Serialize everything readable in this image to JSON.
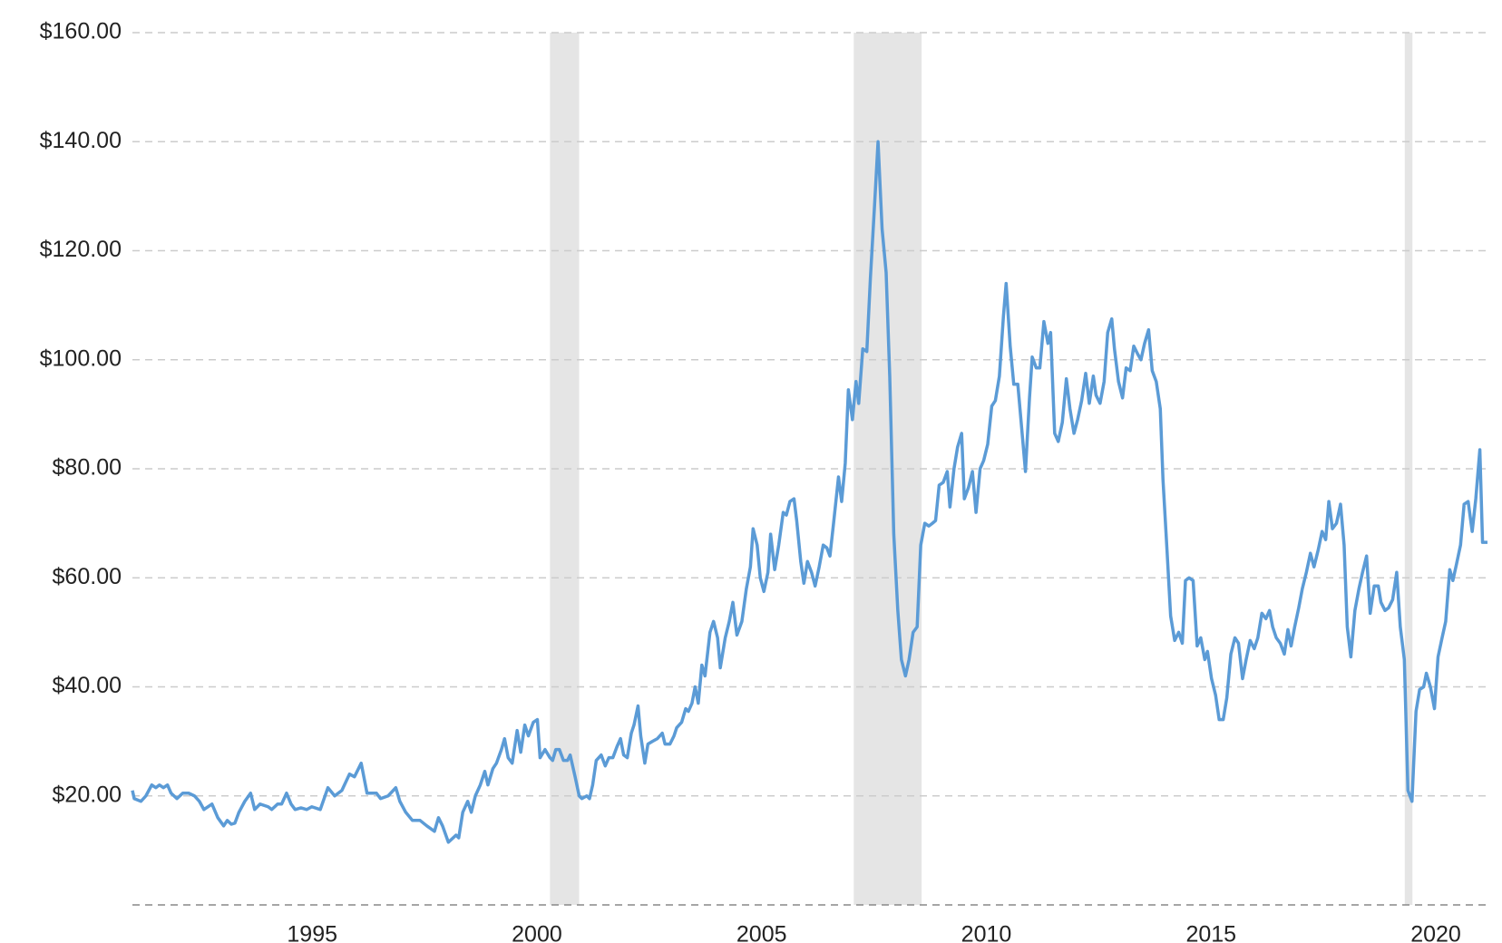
{
  "chart_data": {
    "type": "line",
    "x": [
      1991.0,
      1991.04,
      1991.19,
      1991.3,
      1991.43,
      1991.52,
      1991.6,
      1991.69,
      1991.78,
      1991.86,
      1991.99,
      1992.12,
      1992.25,
      1992.38,
      1992.49,
      1992.59,
      1992.77,
      1992.9,
      1993.03,
      1993.11,
      1993.2,
      1993.28,
      1993.37,
      1993.5,
      1993.63,
      1993.72,
      1993.84,
      1994.02,
      1994.1,
      1994.23,
      1994.32,
      1994.43,
      1994.53,
      1994.62,
      1994.75,
      1994.88,
      1994.99,
      1995.18,
      1995.35,
      1995.5,
      1995.66,
      1995.83,
      1995.94,
      1996.09,
      1996.22,
      1996.43,
      1996.52,
      1996.69,
      1996.86,
      1996.95,
      1997.08,
      1997.23,
      1997.4,
      1997.55,
      1997.72,
      1997.81,
      1997.9,
      1998.03,
      1998.2,
      1998.26,
      1998.35,
      1998.46,
      1998.54,
      1998.63,
      1998.74,
      1998.84,
      1998.91,
      1999.02,
      1999.1,
      1999.21,
      1999.28,
      1999.36,
      1999.45,
      1999.56,
      1999.64,
      1999.73,
      1999.81,
      1999.92,
      2000.01,
      2000.07,
      2000.18,
      2000.29,
      2000.35,
      2000.42,
      2000.5,
      2000.59,
      2000.68,
      2000.74,
      2000.85,
      2000.94,
      2001.0,
      2001.11,
      2001.17,
      2001.24,
      2001.32,
      2001.43,
      2001.52,
      2001.6,
      2001.69,
      2001.78,
      2001.86,
      2001.93,
      2002.01,
      2002.1,
      2002.16,
      2002.25,
      2002.31,
      2002.4,
      2002.47,
      2002.57,
      2002.68,
      2002.79,
      2002.85,
      2002.96,
      2003.05,
      2003.11,
      2003.22,
      2003.31,
      2003.37,
      2003.45,
      2003.52,
      2003.59,
      2003.67,
      2003.74,
      2003.85,
      2003.93,
      2004.02,
      2004.08,
      2004.19,
      2004.28,
      2004.36,
      2004.45,
      2004.56,
      2004.66,
      2004.75,
      2004.81,
      2004.9,
      2004.97,
      2005.05,
      2005.14,
      2005.2,
      2005.29,
      2005.38,
      2005.48,
      2005.55,
      2005.63,
      2005.72,
      2005.78,
      2005.87,
      2005.94,
      2006.02,
      2006.11,
      2006.19,
      2006.28,
      2006.37,
      2006.45,
      2006.52,
      2006.6,
      2006.71,
      2006.78,
      2006.86,
      2006.93,
      2007.02,
      2007.1,
      2007.16,
      2007.25,
      2007.34,
      2007.42,
      2007.51,
      2007.59,
      2007.68,
      2007.77,
      2007.85,
      2007.94,
      2008.03,
      2008.11,
      2008.2,
      2008.28,
      2008.37,
      2008.46,
      2008.54,
      2008.63,
      2008.72,
      2008.8,
      2008.87,
      2008.95,
      2009.04,
      2009.13,
      2009.19,
      2009.28,
      2009.36,
      2009.45,
      2009.51,
      2009.6,
      2009.69,
      2009.77,
      2009.86,
      2009.94,
      2010.03,
      2010.12,
      2010.2,
      2010.29,
      2010.38,
      2010.44,
      2010.53,
      2010.61,
      2010.7,
      2010.78,
      2010.87,
      2010.96,
      2011.02,
      2011.11,
      2011.19,
      2011.28,
      2011.37,
      2011.43,
      2011.52,
      2011.6,
      2011.69,
      2011.78,
      2011.86,
      2011.95,
      2012.03,
      2012.12,
      2012.21,
      2012.29,
      2012.38,
      2012.44,
      2012.53,
      2012.62,
      2012.7,
      2012.79,
      2012.85,
      2012.94,
      2013.03,
      2013.11,
      2013.2,
      2013.28,
      2013.37,
      2013.44,
      2013.52,
      2013.61,
      2013.69,
      2013.78,
      2013.87,
      2013.93,
      2014.02,
      2014.1,
      2014.19,
      2014.28,
      2014.36,
      2014.43,
      2014.51,
      2014.6,
      2014.69,
      2014.77,
      2014.86,
      2014.92,
      2015.01,
      2015.1,
      2015.18,
      2015.27,
      2015.35,
      2015.44,
      2015.53,
      2015.61,
      2015.7,
      2015.78,
      2015.87,
      2015.96,
      2016.04,
      2016.13,
      2016.22,
      2016.3,
      2016.37,
      2016.45,
      2016.54,
      2016.63,
      2016.71,
      2016.78,
      2016.86,
      2016.95,
      2017.03,
      2017.12,
      2017.21,
      2017.29,
      2017.38,
      2017.47,
      2017.55,
      2017.62,
      2017.7,
      2017.79,
      2017.88,
      2017.96,
      2018.03,
      2018.11,
      2018.2,
      2018.29,
      2018.37,
      2018.46,
      2018.54,
      2018.63,
      2018.72,
      2018.78,
      2018.87,
      2018.95,
      2019.04,
      2019.13,
      2019.21,
      2019.3,
      2019.38,
      2019.47,
      2019.56,
      2019.64,
      2019.73,
      2019.79,
      2019.88,
      2019.97,
      2020.05,
      2020.14,
      2020.22,
      2020.31,
      2020.38,
      2020.46,
      2020.55,
      2020.63,
      2020.72,
      2020.81,
      2020.89,
      2020.98,
      2021.04,
      2021.15
    ],
    "values": [
      21,
      19.5,
      19,
      20,
      22,
      21.5,
      22,
      21.5,
      22,
      20.5,
      19.5,
      20.5,
      20.5,
      20,
      19,
      17.5,
      18.5,
      16,
      14.5,
      15.5,
      14.8,
      15,
      17,
      19,
      20.5,
      17.5,
      18.5,
      18,
      17.5,
      18.5,
      18.5,
      20.5,
      18.5,
      17.5,
      17.8,
      17.5,
      18,
      17.5,
      21.5,
      20,
      21,
      24,
      23.5,
      26,
      20.5,
      20.5,
      19.5,
      20,
      21.5,
      19,
      17,
      15.5,
      15.5,
      14.5,
      13.5,
      16,
      14.5,
      11.5,
      12.8,
      12.3,
      17,
      19,
      17,
      20,
      22,
      24.5,
      22,
      25,
      26,
      28.5,
      30.5,
      27,
      26,
      32,
      28,
      33,
      31,
      33.5,
      34,
      27,
      28.5,
      27,
      26.5,
      28.5,
      28.5,
      26.5,
      26.5,
      27.5,
      23.5,
      20,
      19.5,
      20,
      19.5,
      22,
      26.5,
      27.5,
      25.5,
      27,
      27,
      29,
      30.5,
      27.5,
      27,
      31.5,
      33,
      36.5,
      31,
      26,
      29.5,
      30,
      30.5,
      31.5,
      29.5,
      29.5,
      31,
      32.5,
      33.5,
      36,
      35.5,
      37,
      40,
      37,
      44,
      42,
      50,
      52,
      49,
      43.5,
      49,
      52,
      55.5,
      49.5,
      52,
      58,
      62,
      69,
      66,
      60,
      57.5,
      61,
      68,
      61.5,
      66,
      72,
      71.5,
      74,
      74.5,
      70.5,
      63,
      59,
      63,
      61,
      58.5,
      62,
      66,
      65.5,
      64,
      70,
      78.5,
      74,
      81,
      94.5,
      89,
      96,
      92,
      102,
      101.5,
      115,
      128,
      140,
      124,
      116,
      97,
      68,
      54,
      45,
      42,
      45,
      50,
      51,
      66,
      70,
      69.5,
      70,
      70.5,
      77,
      77.5,
      79.5,
      73,
      80,
      84,
      86.5,
      74.5,
      76.5,
      79.5,
      72,
      80,
      81.5,
      84.5,
      91.5,
      92.5,
      97,
      108,
      114,
      102.5,
      95.5,
      95.5,
      88,
      79.5,
      93,
      100.5,
      98.5,
      98.5,
      107,
      103,
      105,
      86.5,
      85,
      88.5,
      96.5,
      91,
      86.5,
      89,
      92.5,
      97.5,
      92,
      97,
      93.5,
      92,
      96,
      105,
      107.5,
      102,
      96,
      93,
      98.5,
      98,
      102.5,
      101,
      100,
      103,
      105.5,
      98,
      96,
      91,
      78,
      65,
      53,
      48.5,
      50,
      48,
      59.5,
      60,
      59.5,
      47.5,
      49,
      45,
      46.5,
      41.5,
      38.5,
      34,
      34,
      38,
      46,
      49,
      48,
      41.5,
      45,
      48.5,
      47,
      49,
      53.5,
      52.5,
      54,
      51,
      49,
      48,
      46,
      50.5,
      47.5,
      51,
      54.5,
      58,
      61,
      64.5,
      62,
      65,
      68.5,
      67,
      74,
      69,
      70,
      73.5,
      66,
      51,
      45.5,
      54,
      58,
      61,
      64,
      53.5,
      58.5,
      58.5,
      55.5,
      54,
      54.5,
      56,
      61,
      51,
      45,
      21,
      19,
      35.5,
      39.5,
      40,
      42.5,
      40,
      36,
      45.5,
      49,
      52,
      61.5,
      59.5,
      62.5,
      66,
      73.5,
      74,
      68.5,
      74.5,
      83.5,
      66.5,
      66.5
    ],
    "color": "#5b9bd6",
    "xlim": [
      1991,
      2021.15
    ],
    "xticks": [
      1995,
      2000,
      2005,
      2010,
      2015,
      2020
    ],
    "ylim": [
      0,
      160
    ],
    "yticks": [
      {
        "value": 20,
        "label": "$20.00"
      },
      {
        "value": 40,
        "label": "$40.00"
      },
      {
        "value": 60,
        "label": "$60.00"
      },
      {
        "value": 80,
        "label": "$80.00"
      },
      {
        "value": 100,
        "label": "$100.00"
      },
      {
        "value": 120,
        "label": "$120.00"
      },
      {
        "value": 140,
        "label": "$140.00"
      },
      {
        "value": 160,
        "label": "$160.00"
      }
    ],
    "grid": true,
    "shaded_periods": [
      [
        2000.29,
        2000.94
      ],
      [
        2007.05,
        2008.56
      ],
      [
        2019.31,
        2019.48
      ]
    ],
    "shaded_color": "#e5e5e5"
  }
}
